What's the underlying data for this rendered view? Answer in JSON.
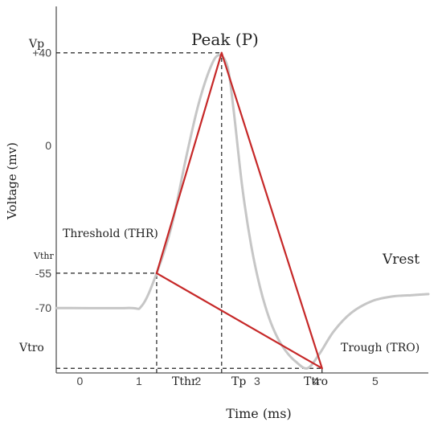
{
  "chart_data": {
    "type": "line",
    "xlabel": "Time (ms)",
    "ylabel": "Voltage (mv)",
    "x_ticks": [
      {
        "value": 0,
        "label": "0"
      },
      {
        "value": 1,
        "label": "1"
      },
      {
        "value": 2,
        "label": "2"
      },
      {
        "value": 3,
        "label": "3"
      },
      {
        "value": 4,
        "label": "4"
      },
      {
        "value": 5,
        "label": "5"
      }
    ],
    "y_ticks": [
      {
        "value": 40,
        "label": "+40"
      },
      {
        "value": 0,
        "label": "0"
      },
      {
        "value": -55,
        "label": "-55"
      },
      {
        "value": -70,
        "label": "-70"
      }
    ],
    "xlim": [
      -0.4,
      5.9
    ],
    "ylim": [
      -98,
      60
    ],
    "action_potential": {
      "color": "#c6c6c6",
      "x": [
        -0.4,
        0.8,
        1.05,
        1.3,
        1.55,
        1.8,
        2.0,
        2.2,
        2.35,
        2.5,
        2.6,
        2.75,
        2.9,
        3.05,
        3.2,
        3.35,
        3.5,
        3.65,
        3.85,
        4.05,
        4.3,
        4.6,
        4.95,
        5.3,
        5.6,
        5.9
      ],
      "y": [
        -70,
        -70,
        -69,
        -55,
        -35,
        -5,
        17,
        33,
        39,
        34,
        16,
        -18,
        -43,
        -61,
        -74,
        -83,
        -89,
        -93,
        -96,
        -90,
        -80,
        -72,
        -67,
        -65,
        -64.5,
        -64
      ]
    },
    "triangle": {
      "color": "#c62828",
      "points": [
        {
          "x": 1.3,
          "y": -55
        },
        {
          "x": 2.4,
          "y": 40
        },
        {
          "x": 4.1,
          "y": -96
        }
      ]
    },
    "reference_lines": [
      {
        "kind": "h",
        "y": 40,
        "x_end": 2.4
      },
      {
        "kind": "h",
        "y": -55,
        "x_end": 1.3
      },
      {
        "kind": "h",
        "y": -96,
        "x_end": 4.1
      },
      {
        "kind": "v",
        "x": 1.3,
        "y_end": -55
      },
      {
        "kind": "v",
        "x": 2.4,
        "y_end": 40
      },
      {
        "kind": "v",
        "x": 4.1,
        "y_end": -96
      }
    ],
    "annotations": {
      "peak": "Peak (P)",
      "threshold": "Threshold (THR)",
      "trough": "Trough (TRO)",
      "vrest": "Vrest",
      "vp": "Vp",
      "vthr": "Vthr",
      "vtro": "Vtro",
      "tthr": "Tthr",
      "tp": "Tp",
      "ttro": "Ttro"
    }
  }
}
